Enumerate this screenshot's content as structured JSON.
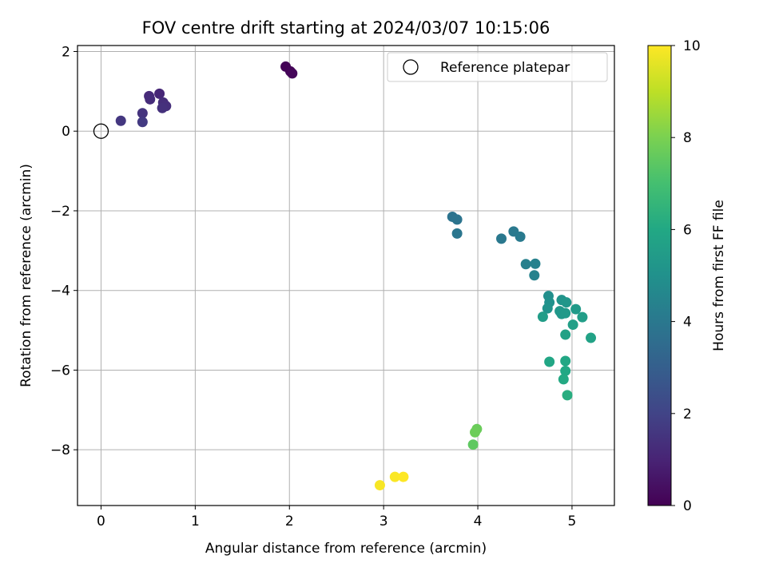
{
  "chart_data": {
    "type": "scatter",
    "title": "FOV centre drift starting at 2024/03/07 10:15:06",
    "xlabel": "Angular distance from reference (arcmin)",
    "ylabel": "Rotation from reference (arcmin)",
    "xlim": [
      -0.25,
      5.45
    ],
    "ylim": [
      -9.4,
      2.15
    ],
    "xticks": [
      "0",
      "1",
      "2",
      "3",
      "4",
      "5"
    ],
    "yticks": [
      "2",
      "0",
      "−2",
      "−4",
      "−6",
      "−8"
    ],
    "grid": true,
    "legend": {
      "placement": "top-right",
      "entries": [
        "Reference platepar"
      ]
    },
    "reference_point": {
      "x": 0,
      "y": 0,
      "label": "Reference platepar"
    },
    "colorbar": {
      "label": "Hours from first FF file",
      "range": [
        0,
        10
      ],
      "ticks": [
        "0",
        "2",
        "4",
        "6",
        "8",
        "10"
      ],
      "colormap": "viridis"
    },
    "points": [
      {
        "x": 1.96,
        "y": 1.62,
        "h": 0.05
      },
      {
        "x": 2.01,
        "y": 1.5,
        "h": 0.1
      },
      {
        "x": 2.03,
        "y": 1.45,
        "h": 0.15
      },
      {
        "x": 0.62,
        "y": 0.94,
        "h": 1.1
      },
      {
        "x": 0.51,
        "y": 0.88,
        "h": 1.2
      },
      {
        "x": 0.52,
        "y": 0.8,
        "h": 1.25
      },
      {
        "x": 0.66,
        "y": 0.72,
        "h": 1.3
      },
      {
        "x": 0.69,
        "y": 0.63,
        "h": 1.35
      },
      {
        "x": 0.65,
        "y": 0.58,
        "h": 1.4
      },
      {
        "x": 0.44,
        "y": 0.45,
        "h": 1.5
      },
      {
        "x": 0.21,
        "y": 0.26,
        "h": 1.6
      },
      {
        "x": 0.44,
        "y": 0.23,
        "h": 1.7
      },
      {
        "x": 3.73,
        "y": -2.15,
        "h": 3.8
      },
      {
        "x": 3.78,
        "y": -2.22,
        "h": 3.85
      },
      {
        "x": 3.78,
        "y": -2.57,
        "h": 3.9
      },
      {
        "x": 4.25,
        "y": -2.7,
        "h": 4.0
      },
      {
        "x": 4.38,
        "y": -2.52,
        "h": 4.05
      },
      {
        "x": 4.45,
        "y": -2.65,
        "h": 4.1
      },
      {
        "x": 4.51,
        "y": -3.34,
        "h": 4.3
      },
      {
        "x": 4.61,
        "y": -3.33,
        "h": 4.35
      },
      {
        "x": 4.6,
        "y": -3.62,
        "h": 4.4
      },
      {
        "x": 4.75,
        "y": -4.14,
        "h": 4.9
      },
      {
        "x": 4.76,
        "y": -4.3,
        "h": 5.0
      },
      {
        "x": 4.74,
        "y": -4.45,
        "h": 5.1
      },
      {
        "x": 4.89,
        "y": -4.24,
        "h": 5.15
      },
      {
        "x": 4.94,
        "y": -4.3,
        "h": 5.2
      },
      {
        "x": 4.87,
        "y": -4.52,
        "h": 5.25
      },
      {
        "x": 4.89,
        "y": -4.59,
        "h": 5.3
      },
      {
        "x": 4.93,
        "y": -4.57,
        "h": 5.35
      },
      {
        "x": 5.04,
        "y": -4.47,
        "h": 5.4
      },
      {
        "x": 4.69,
        "y": -4.66,
        "h": 5.5
      },
      {
        "x": 5.11,
        "y": -4.67,
        "h": 5.55
      },
      {
        "x": 5.01,
        "y": -4.86,
        "h": 5.6
      },
      {
        "x": 4.93,
        "y": -5.11,
        "h": 5.7
      },
      {
        "x": 5.2,
        "y": -5.19,
        "h": 5.75
      },
      {
        "x": 4.76,
        "y": -5.79,
        "h": 5.9
      },
      {
        "x": 4.93,
        "y": -5.77,
        "h": 5.95
      },
      {
        "x": 4.93,
        "y": -6.02,
        "h": 6.0
      },
      {
        "x": 4.91,
        "y": -6.23,
        "h": 6.05
      },
      {
        "x": 4.95,
        "y": -6.63,
        "h": 6.2
      },
      {
        "x": 3.99,
        "y": -7.48,
        "h": 7.7
      },
      {
        "x": 3.97,
        "y": -7.56,
        "h": 7.75
      },
      {
        "x": 3.95,
        "y": -7.87,
        "h": 7.5
      },
      {
        "x": 2.96,
        "y": -8.89,
        "h": 9.9
      },
      {
        "x": 3.12,
        "y": -8.68,
        "h": 9.95
      },
      {
        "x": 3.21,
        "y": -8.68,
        "h": 10.0
      }
    ]
  }
}
